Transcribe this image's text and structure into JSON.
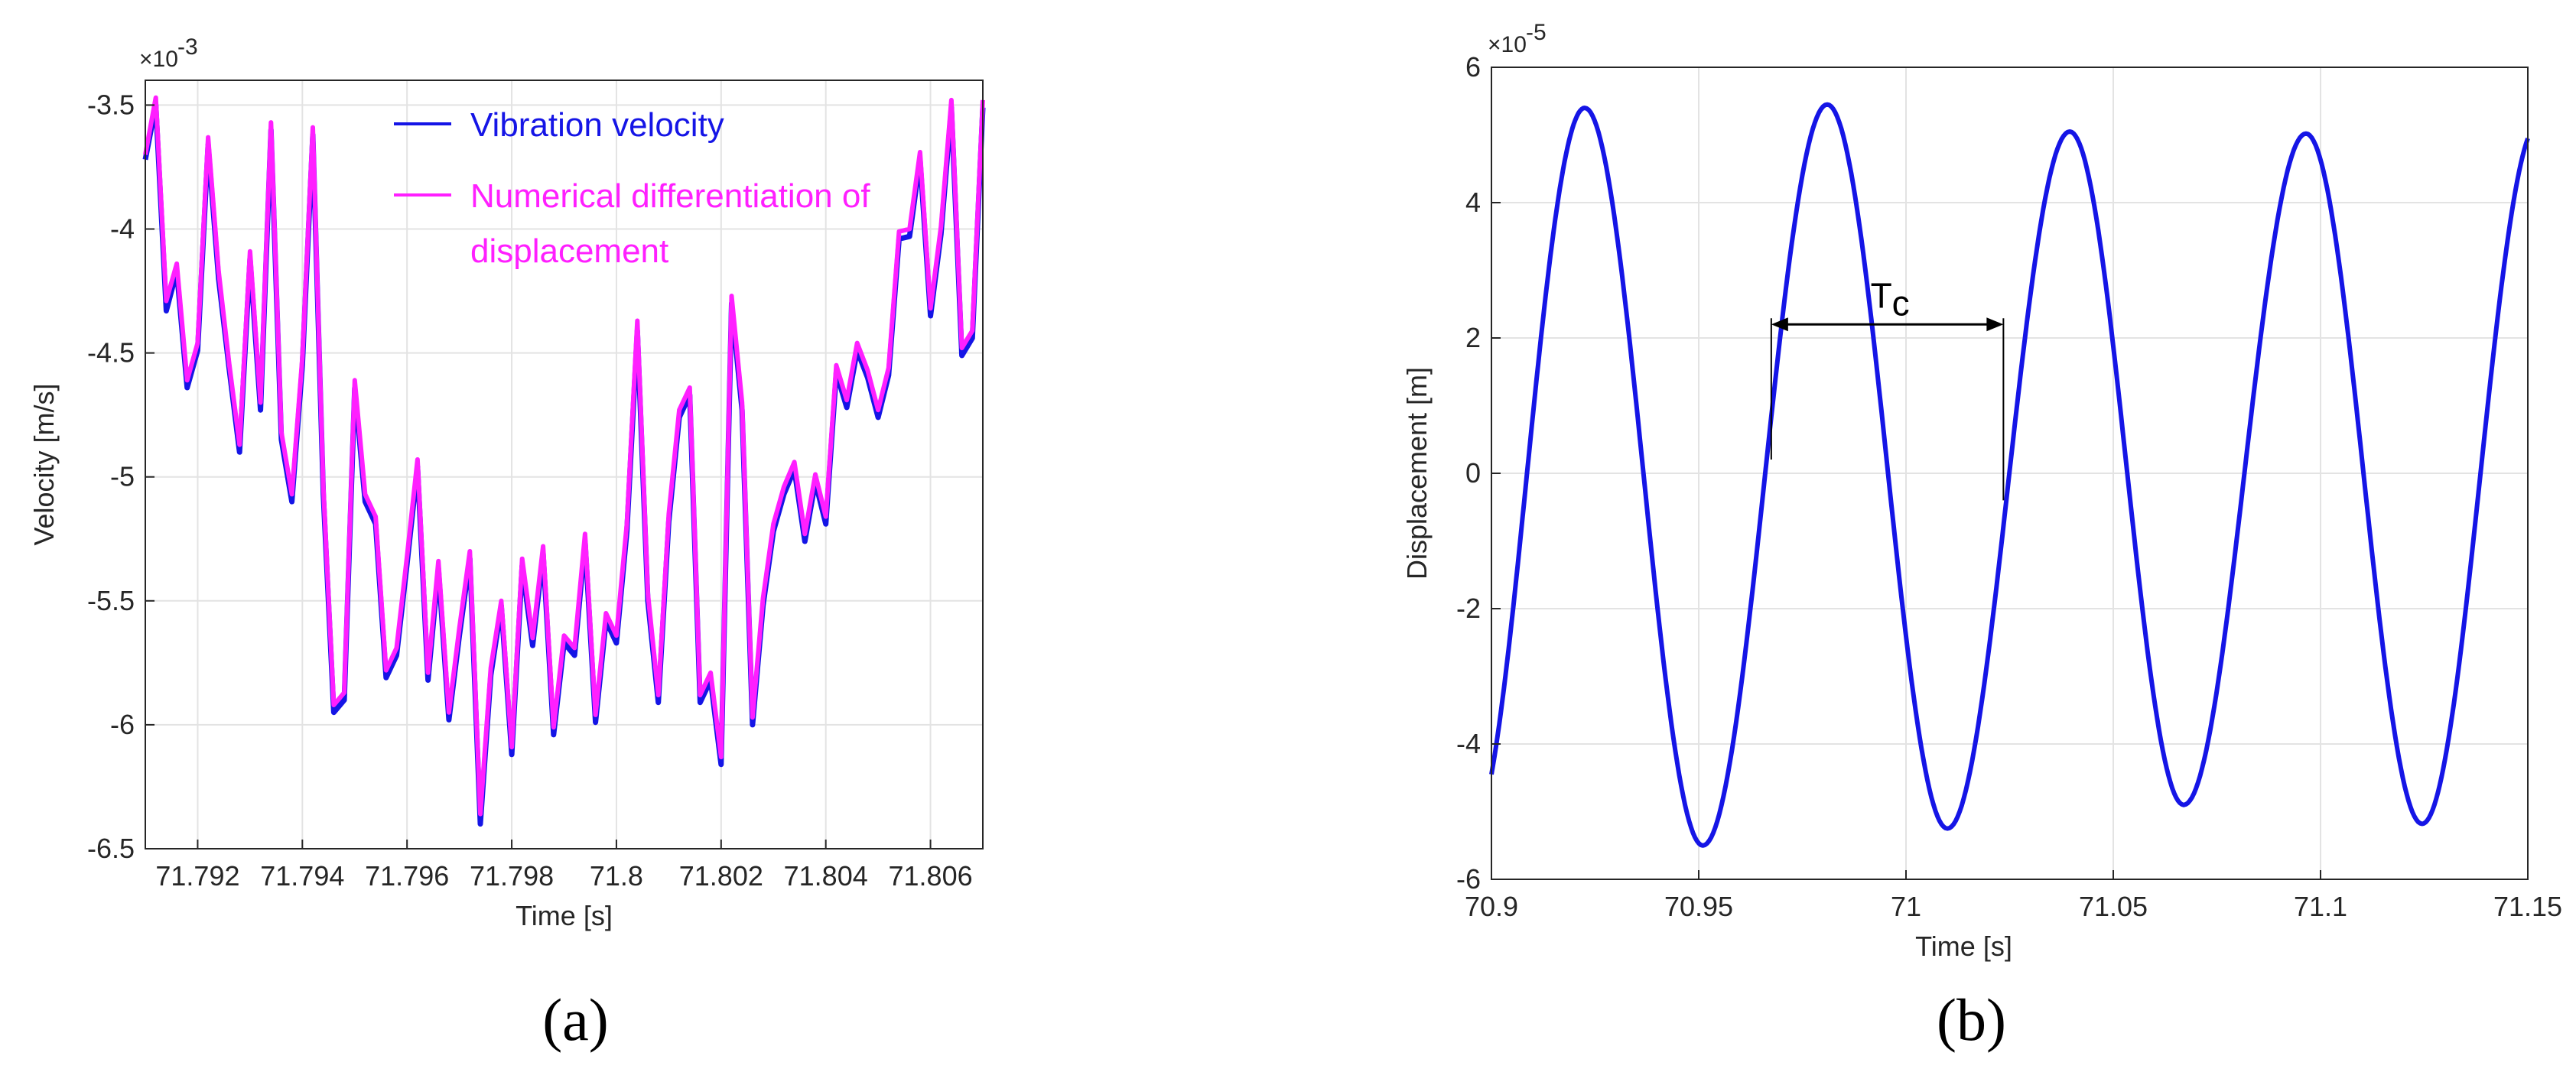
{
  "chart_data": [
    {
      "type": "line",
      "panel_label": "(a)",
      "xlabel": "Time [s]",
      "ylabel": "Velocity [m/s]",
      "y_multiplier": "×10",
      "y_exponent": "-3",
      "xlim": [
        71.791,
        71.807
      ],
      "ylim": [
        -6.5,
        -3.4
      ],
      "xticks": [
        71.792,
        71.794,
        71.796,
        71.798,
        71.8,
        71.802,
        71.804,
        71.806
      ],
      "xtick_labels": [
        "71.792",
        "71.794",
        "71.796",
        "71.798",
        "71.8",
        "71.802",
        "71.804",
        "71.806"
      ],
      "yticks": [
        -3.5,
        -4,
        -4.5,
        -5,
        -5.5,
        -6,
        -6.5
      ],
      "ytick_labels": [
        "-3.5",
        "-4",
        "-4.5",
        "-5",
        "-5.5",
        "-6",
        "-6.5"
      ],
      "grid": true,
      "legend_position": "top-center",
      "legend_lines": [
        "Vibration velocity",
        "Numerical differentiation of",
        "displacement"
      ],
      "colors": {
        "series1": "#1515e6",
        "series2": "#ff1fff"
      },
      "x": [
        71.791,
        71.7912,
        71.7914,
        71.7916,
        71.7918,
        71.792,
        71.7922,
        71.7924,
        71.7926,
        71.7928,
        71.793,
        71.7932,
        71.7934,
        71.7936,
        71.7938,
        71.794,
        71.7942,
        71.7944,
        71.7946,
        71.7948,
        71.795,
        71.7952,
        71.7954,
        71.7956,
        71.7958,
        71.796,
        71.7962,
        71.7964,
        71.7966,
        71.7968,
        71.797,
        71.7972,
        71.7974,
        71.7976,
        71.7978,
        71.798,
        71.7982,
        71.7984,
        71.7986,
        71.7988,
        71.799,
        71.7992,
        71.7994,
        71.7996,
        71.7998,
        71.8,
        71.8002,
        71.8004,
        71.8006,
        71.8008,
        71.801,
        71.8012,
        71.8014,
        71.8016,
        71.8018,
        71.802,
        71.8022,
        71.8024,
        71.8026,
        71.8028,
        71.803,
        71.8032,
        71.8034,
        71.8036,
        71.8038,
        71.804,
        71.8042,
        71.8044,
        71.8046,
        71.8048,
        71.805,
        71.8052,
        71.8054,
        71.8056,
        71.8058,
        71.806,
        71.8062,
        71.8064,
        71.8066,
        71.8068,
        71.807
      ],
      "series": [
        {
          "name": "Vibration velocity",
          "values": [
            -3.72,
            -3.5,
            -4.33,
            -4.17,
            -4.64,
            -4.49,
            -3.66,
            -4.2,
            -4.56,
            -4.9,
            -4.12,
            -4.73,
            -3.6,
            -4.85,
            -5.1,
            -4.55,
            -3.62,
            -5.07,
            -5.95,
            -5.9,
            -4.64,
            -5.1,
            -5.19,
            -5.81,
            -5.72,
            -5.35,
            -4.96,
            -5.82,
            -5.37,
            -5.98,
            -5.64,
            -5.33,
            -6.4,
            -5.8,
            -5.52,
            -6.12,
            -5.36,
            -5.68,
            -5.31,
            -6.04,
            -5.67,
            -5.72,
            -5.26,
            -5.99,
            -5.58,
            -5.67,
            -5.22,
            -4.41,
            -5.5,
            -5.91,
            -5.18,
            -4.76,
            -4.67,
            -5.91,
            -5.82,
            -6.16,
            -4.3,
            -4.73,
            -6.0,
            -5.52,
            -5.22,
            -5.07,
            -4.97,
            -5.26,
            -5.02,
            -5.19,
            -4.58,
            -4.72,
            -4.49,
            -4.6,
            -4.76,
            -4.59,
            -4.04,
            -4.03,
            -3.72,
            -4.35,
            -4.02,
            -3.51,
            -4.51,
            -4.44,
            -3.51
          ]
        },
        {
          "name": "Numerical differentiation of displacement",
          "values": [
            -3.7,
            -3.47,
            -4.29,
            -4.14,
            -4.61,
            -4.46,
            -3.63,
            -4.17,
            -4.54,
            -4.87,
            -4.09,
            -4.7,
            -3.57,
            -4.82,
            -5.07,
            -4.52,
            -3.59,
            -5.04,
            -5.92,
            -5.87,
            -4.61,
            -5.07,
            -5.16,
            -5.78,
            -5.69,
            -5.32,
            -4.93,
            -5.79,
            -5.34,
            -5.95,
            -5.61,
            -5.3,
            -6.36,
            -5.77,
            -5.5,
            -6.09,
            -5.33,
            -5.65,
            -5.28,
            -6.01,
            -5.64,
            -5.69,
            -5.23,
            -5.96,
            -5.55,
            -5.64,
            -5.19,
            -4.37,
            -5.47,
            -5.88,
            -5.15,
            -4.73,
            -4.64,
            -5.88,
            -5.79,
            -6.13,
            -4.27,
            -4.7,
            -5.97,
            -5.49,
            -5.19,
            -5.04,
            -4.94,
            -5.23,
            -4.99,
            -5.16,
            -4.55,
            -4.69,
            -4.46,
            -4.57,
            -4.73,
            -4.56,
            -4.01,
            -4.0,
            -3.69,
            -4.32,
            -3.99,
            -3.48,
            -4.48,
            -4.41,
            -3.48
          ]
        }
      ]
    },
    {
      "type": "line",
      "panel_label": "(b)",
      "xlabel": "Time [s]",
      "ylabel": "Displacement [m]",
      "y_multiplier": "×10",
      "y_exponent": "-5",
      "xlim": [
        70.9,
        71.15
      ],
      "ylim": [
        -6,
        6
      ],
      "xticks": [
        70.9,
        70.95,
        71.0,
        71.05,
        71.1,
        71.15
      ],
      "xtick_labels": [
        "70.9",
        "70.95",
        "71",
        "71.05",
        "71.1",
        "71.15"
      ],
      "yticks": [
        6,
        4,
        2,
        0,
        -2,
        -4,
        -6
      ],
      "ytick_labels": [
        "6",
        "4",
        "2",
        "0",
        "-2",
        "-4",
        "-6"
      ],
      "grid": true,
      "annotation": {
        "text": "T",
        "subscript": "c",
        "x_start": 70.9675,
        "x_end": 71.0235,
        "y": 2.2
      },
      "colors": {
        "series1": "#1515e6"
      },
      "series": [
        {
          "period": 0.0575,
          "phase_ref_time": 70.9665,
          "peaks": [
            {
              "t": 70.9225,
              "y": 5.4
            },
            {
              "t": 70.951,
              "y": -5.5
            },
            {
              "t": 70.981,
              "y": 5.45
            },
            {
              "t": 71.01,
              "y": -5.25
            },
            {
              "t": 71.0395,
              "y": 5.05
            },
            {
              "t": 71.067,
              "y": -4.9
            },
            {
              "t": 71.0965,
              "y": 5.02
            },
            {
              "t": 71.1245,
              "y": -5.18
            }
          ],
          "start": {
            "t": 70.9,
            "y": -4.45
          },
          "end": {
            "t": 71.15,
            "y": 4.95
          }
        }
      ]
    }
  ]
}
